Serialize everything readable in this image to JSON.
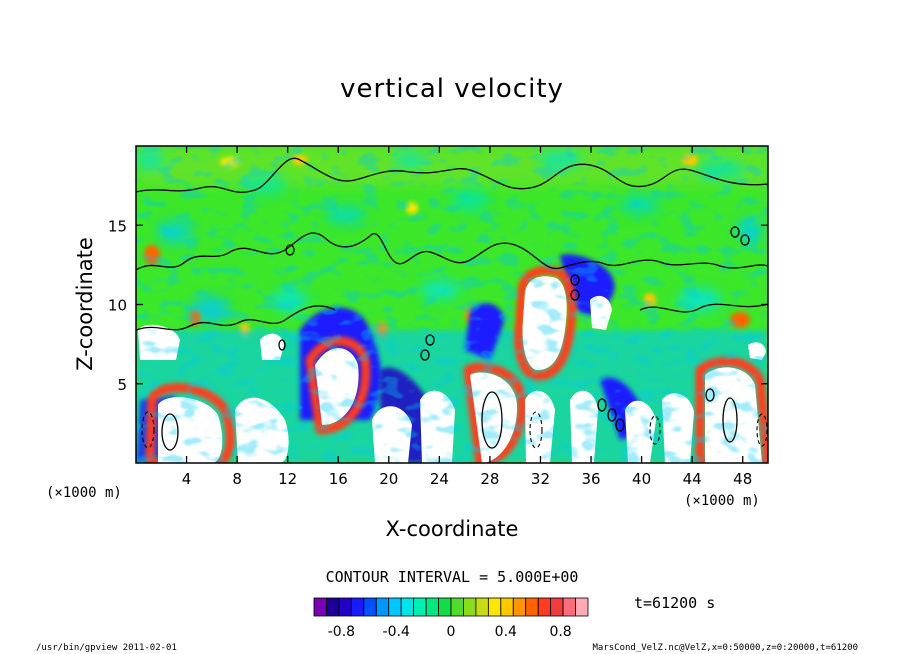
{
  "chart_data": {
    "type": "heatmap",
    "title": "vertical velocity",
    "xlabel": "X-coordinate",
    "ylabel": "Z-coordinate",
    "x_unit": "(×1000 m)",
    "y_unit": "(×1000 m)",
    "xlim": [
      0,
      50
    ],
    "ylim": [
      0,
      20
    ],
    "x_ticks": [
      4,
      8,
      12,
      16,
      20,
      24,
      28,
      32,
      36,
      40,
      44,
      48
    ],
    "y_ticks": [
      5,
      10,
      15
    ],
    "contour_interval_text": "CONTOUR INTERVAL = 5.000E+00",
    "time_text": "t=61200 s",
    "colorbar": {
      "ticks": [
        "-0.8",
        "-0.4",
        "0",
        "0.4",
        "0.8"
      ],
      "tick_values": [
        -0.8,
        -0.4,
        0,
        0.4,
        0.8
      ],
      "range": [
        -1.0,
        1.0
      ],
      "colors": [
        "#7a00b4",
        "#1e0096",
        "#2300c8",
        "#1a1aff",
        "#0050ff",
        "#0096ff",
        "#00c8ff",
        "#00e6e6",
        "#00f0b4",
        "#00e680",
        "#14dc46",
        "#50dc28",
        "#8cdc1e",
        "#c8dc14",
        "#ffe600",
        "#ffc800",
        "#ff9600",
        "#ff6400",
        "#ff3c1e",
        "#f03c3c",
        "#ff6e78",
        "#ffaab4"
      ]
    }
  },
  "footer": {
    "left": "/usr/bin/gpview  2011-02-01",
    "right": "MarsCond_VelZ.nc@VelZ,x=0:50000,z=0:20000,t=61200"
  }
}
